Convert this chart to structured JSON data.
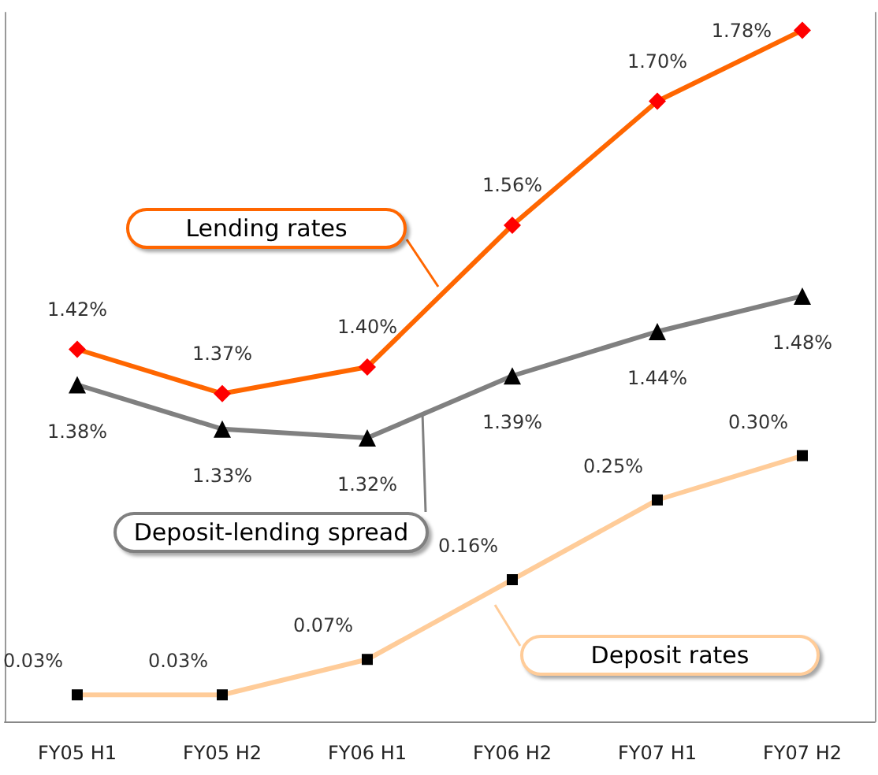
{
  "chart_data": {
    "type": "line",
    "categories": [
      "FY05 H1",
      "FY05 H2",
      "FY06 H1",
      "FY06 H2",
      "FY07 H1",
      "FY07 H2"
    ],
    "series": [
      {
        "name": "Lending rates",
        "color": "#ff6600",
        "marker": "diamond",
        "values": [
          1.42,
          1.37,
          1.4,
          1.56,
          1.7,
          1.78
        ],
        "value_labels": [
          "1.42%",
          "1.37%",
          "1.40%",
          "1.56%",
          "1.70%",
          "1.78%"
        ]
      },
      {
        "name": "Deposit-lending spread",
        "color": "#808080",
        "marker": "triangle",
        "values": [
          1.38,
          1.33,
          1.32,
          1.39,
          1.44,
          1.48
        ],
        "value_labels": [
          "1.38%",
          "1.33%",
          "1.32%",
          "1.39%",
          "1.44%",
          "1.48%"
        ]
      },
      {
        "name": "Deposit rates",
        "color": "#ffcc99",
        "marker": "square",
        "axis": "y2",
        "values": [
          0.03,
          0.03,
          0.07,
          0.16,
          0.25,
          0.3
        ],
        "value_labels": [
          "0.03%",
          "0.03%",
          "0.07%",
          "0.16%",
          "0.25%",
          "0.30%"
        ]
      }
    ],
    "ylim": [
      1.0,
      1.8
    ],
    "y2lim": [
      0,
      0.8
    ],
    "tick_labels": "x",
    "grid": false,
    "legend": false
  }
}
